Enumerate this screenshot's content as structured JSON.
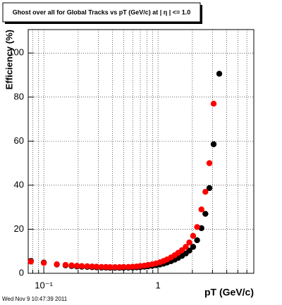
{
  "chart_data": {
    "type": "scatter",
    "title": "Ghost over all for Global Tracks vs pT (GeV/c) at | η | <= 1.0",
    "x_label": "pT (GeV/c)",
    "y_label": "Efficiency (%)",
    "timestamp": "Wed Nov  9 10:47:39 2011",
    "x_log": true,
    "grid": true,
    "xlim": [
      0.073,
      6.9
    ],
    "ylim": [
      0,
      110
    ],
    "xticks": [
      {
        "value": 0.1,
        "label": "10⁻¹"
      },
      1
    ],
    "minor_xticks": [
      0.08,
      0.09,
      0.2,
      0.3,
      0.4,
      0.5,
      0.6,
      0.7,
      0.8,
      0.9,
      2,
      3,
      4,
      5,
      6
    ],
    "yticks": [
      0,
      20,
      40,
      60,
      80,
      100
    ],
    "x": [
      0.077,
      0.1,
      0.13,
      0.155,
      0.175,
      0.195,
      0.215,
      0.24,
      0.265,
      0.29,
      0.32,
      0.35,
      0.38,
      0.42,
      0.46,
      0.5,
      0.55,
      0.6,
      0.65,
      0.7,
      0.76,
      0.82,
      0.89,
      0.96,
      1.04,
      1.12,
      1.2,
      1.3,
      1.4,
      1.5,
      1.62,
      1.75,
      1.88,
      2.03,
      2.2,
      2.4,
      2.6,
      2.82,
      3.07,
      3.44
    ],
    "series": [
      {
        "color": "#000000",
        "values": [
          5.6,
          4.9,
          4.0,
          3.6,
          3.3,
          3.1,
          3.0,
          2.9,
          2.8,
          2.7,
          2.6,
          2.6,
          2.5,
          2.5,
          2.5,
          2.5,
          2.6,
          2.6,
          2.7,
          2.8,
          3.0,
          3.2,
          3.4,
          3.7,
          4.0,
          4.4,
          4.9,
          5.5,
          6.2,
          7.0,
          7.9,
          9.0,
          10.3,
          12,
          15,
          20.5,
          27,
          38.7,
          58.6,
          90.6
        ]
      },
      {
        "color": "#ff0000",
        "values": [
          5.3,
          4.7,
          4.1,
          3.8,
          3.6,
          3.4,
          3.3,
          3.2,
          3.1,
          3.0,
          2.9,
          2.9,
          2.8,
          2.8,
          2.8,
          2.9,
          2.9,
          3.0,
          3.1,
          3.3,
          3.5,
          3.8,
          4.1,
          4.5,
          5.0,
          5.6,
          6.3,
          7.2,
          8.2,
          9.3,
          10.5,
          12,
          14,
          17,
          21,
          29,
          37,
          50,
          77,
          null
        ]
      }
    ]
  }
}
